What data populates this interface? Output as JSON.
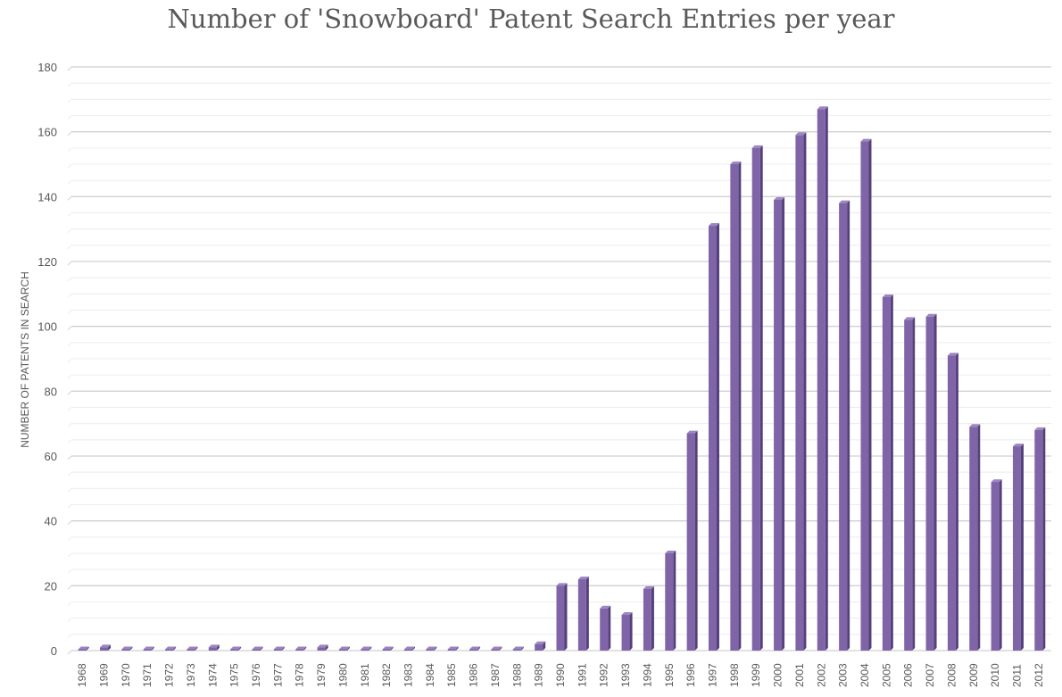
{
  "chart_data": {
    "type": "bar",
    "title": "Number of 'Snowboard' Patent Search Entries per year",
    "xlabel": "",
    "ylabel": "NUMBER OF PATENTS IN SEARCH",
    "ylim": [
      0,
      180
    ],
    "yticks": [
      0,
      20,
      40,
      60,
      80,
      100,
      120,
      140,
      160,
      180
    ],
    "grid": true,
    "legend": "none",
    "bar_color": "#7f64a8",
    "bar_side_color": "#54407a",
    "bar_top_color": "#9c86c2",
    "categories": [
      "1968",
      "1969",
      "1970",
      "1971",
      "1972",
      "1973",
      "1974",
      "1975",
      "1976",
      "1977",
      "1978",
      "1979",
      "1980",
      "1981",
      "1982",
      "1983",
      "1984",
      "1985",
      "1986",
      "1987",
      "1988",
      "1989",
      "1990",
      "1991",
      "1992",
      "1993",
      "1994",
      "1995",
      "1996",
      "1997",
      "1998",
      "1999",
      "2000",
      "2001",
      "2002",
      "2003",
      "2004",
      "2005",
      "2006",
      "2007",
      "2008",
      "2009",
      "2010",
      "2011",
      "2012"
    ],
    "values": [
      0,
      1,
      0,
      0,
      0,
      0,
      1,
      0,
      0,
      0,
      0,
      1,
      0,
      0,
      0,
      0,
      0,
      0,
      0,
      0,
      0,
      2,
      20,
      22,
      13,
      11,
      19,
      30,
      67,
      131,
      150,
      155,
      139,
      159,
      167,
      138,
      157,
      109,
      102,
      103,
      91,
      69,
      52,
      63,
      68
    ]
  }
}
